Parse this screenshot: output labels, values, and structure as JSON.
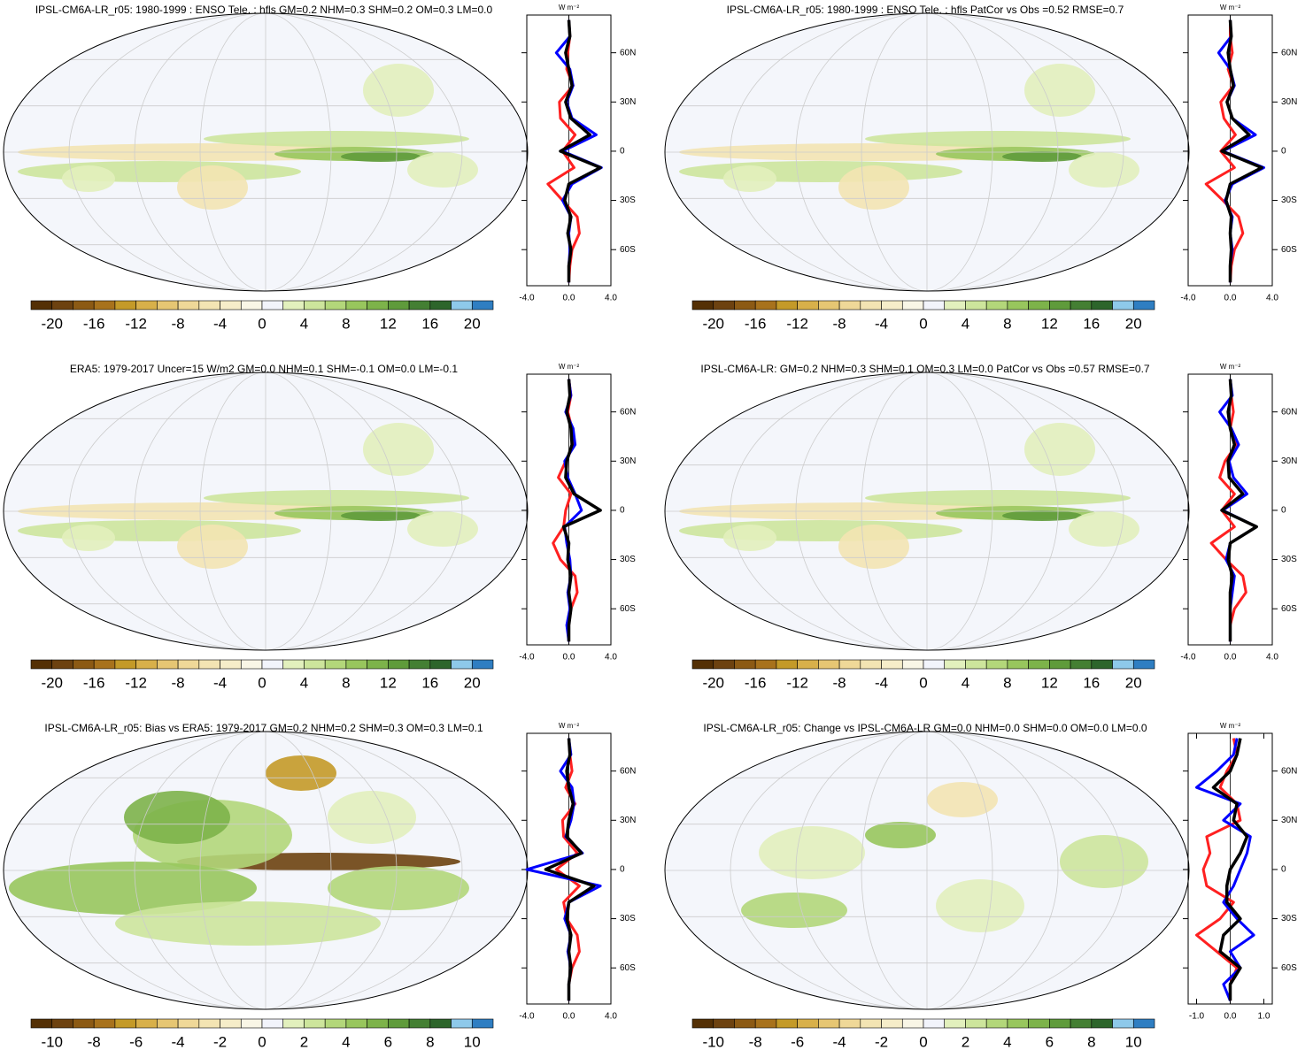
{
  "chart_data": [
    {
      "type": "map",
      "title": "IPSL-CM6A-LR_r05: 1980-1999 : ENSO Tele. : hfls GM=0.2 NHM=0.3 SHM=0.2 OM=0.3 LM=0.0",
      "colorbar": {
        "lim": [
          -22,
          22
        ],
        "colors": [
          "#543005",
          "#6d4210",
          "#8c5a14",
          "#a8721c",
          "#c49a28",
          "#d8b04a",
          "#e6c673",
          "#efd898",
          "#f3e4b3",
          "#f6edc9",
          "#f9f6e6",
          "#f2f4fb",
          "#e2f0bd",
          "#cde59c",
          "#b3d77a",
          "#98c65d",
          "#7db34a",
          "#5f9b3b",
          "#447f33",
          "#2d652b",
          "#8ec9ea",
          "#2f7ec2"
        ],
        "ticks": [
          -20,
          -16,
          -12,
          -8,
          -4,
          0,
          4,
          8,
          12,
          16,
          20
        ]
      },
      "profile": {
        "type": "line",
        "unit_label": "W m⁻²",
        "y": [
          80,
          70,
          60,
          50,
          40,
          30,
          20,
          10,
          0,
          -10,
          -20,
          -30,
          -40,
          -50,
          -60,
          -70,
          -80
        ],
        "ylim": [
          -82,
          83
        ],
        "yticks": [
          {
            "value": 60,
            "label": "60N"
          },
          {
            "value": 30,
            "label": "30N"
          },
          0,
          {
            "value": -30,
            "label": "30S"
          },
          {
            "value": -60,
            "label": "60S"
          }
        ],
        "xlim": [
          -4,
          4
        ],
        "xticks": [
          {
            "value": -4,
            "label": "-4.0"
          },
          {
            "value": 0,
            "label": "0.0"
          },
          {
            "value": 4,
            "label": "4.0"
          }
        ],
        "series": [
          {
            "color": "#ff2020",
            "values": [
              0,
              0.1,
              -0.1,
              -0.2,
              0.4,
              -0.9,
              -0.8,
              0.6,
              -0.6,
              0.5,
              -2.0,
              -0.6,
              0.8,
              1.0,
              0.3,
              0.1,
              0
            ]
          },
          {
            "color": "#0000ff",
            "values": [
              0,
              0.1,
              -1.2,
              0.1,
              0.4,
              -0.2,
              0.3,
              2.6,
              -0.6,
              3.1,
              0.3,
              -0.6,
              0.2,
              0,
              0.1,
              0,
              0
            ]
          },
          {
            "color": "#000000",
            "values": [
              0,
              0.1,
              -0.3,
              0,
              0.3,
              -0.3,
              0.2,
              2.0,
              -0.8,
              3.0,
              0,
              -0.4,
              0.2,
              -0.1,
              0.2,
              0,
              0
            ]
          }
        ]
      }
    },
    {
      "type": "map",
      "title": "IPSL-CM6A-LR_r05: 1980-1999 : ENSO Tele. : hfls PatCor vs Obs =0.52 RMSE=0.7",
      "colorbar": {
        "lim": [
          -22,
          22
        ],
        "colors": [
          "#543005",
          "#6d4210",
          "#8c5a14",
          "#a8721c",
          "#c49a28",
          "#d8b04a",
          "#e6c673",
          "#efd898",
          "#f3e4b3",
          "#f6edc9",
          "#f9f6e6",
          "#f2f4fb",
          "#e2f0bd",
          "#cde59c",
          "#b3d77a",
          "#98c65d",
          "#7db34a",
          "#5f9b3b",
          "#447f33",
          "#2d652b",
          "#8ec9ea",
          "#2f7ec2"
        ],
        "ticks": [
          -20,
          -16,
          -12,
          -8,
          -4,
          0,
          4,
          8,
          12,
          16,
          20
        ]
      },
      "profile": {
        "type": "line",
        "unit_label": "W m⁻²",
        "y": [
          80,
          70,
          60,
          50,
          40,
          30,
          20,
          10,
          0,
          -10,
          -20,
          -30,
          -40,
          -50,
          -60,
          -70,
          -80
        ],
        "ylim": [
          -82,
          83
        ],
        "yticks": [
          {
            "value": 60,
            "label": "60N"
          },
          {
            "value": 30,
            "label": "30N"
          },
          0,
          {
            "value": -30,
            "label": "30S"
          },
          {
            "value": -60,
            "label": "60S"
          }
        ],
        "xlim": [
          -4,
          4
        ],
        "xticks": [
          {
            "value": -4,
            "label": "-4.0"
          },
          {
            "value": 0,
            "label": "0.0"
          },
          {
            "value": 4,
            "label": "4.0"
          }
        ],
        "series": [
          {
            "color": "#ff2020",
            "values": [
              0,
              0,
              0.2,
              -0.2,
              0.3,
              -0.9,
              -0.6,
              0.5,
              -0.9,
              0.4,
              -2.3,
              -0.7,
              0.8,
              1.2,
              0.4,
              0.1,
              0
            ]
          },
          {
            "color": "#0000ff",
            "values": [
              0,
              0.1,
              -1.1,
              0,
              0.4,
              -0.3,
              0.2,
              2.4,
              -0.7,
              3.2,
              0.2,
              -0.5,
              0.2,
              0,
              0.2,
              0,
              0
            ]
          },
          {
            "color": "#000000",
            "values": [
              0,
              0.1,
              -0.2,
              0,
              0.3,
              -0.3,
              0.2,
              1.8,
              -0.8,
              3.0,
              0,
              -0.4,
              0.1,
              0,
              0.1,
              0,
              0
            ]
          }
        ]
      }
    },
    {
      "type": "map",
      "title": "ERA5: 1979-2017 Uncer=15 W/m2 GM=0.0 NHM=0.1 SHM=-0.1 OM=0.0 LM=-0.1",
      "colorbar": {
        "lim": [
          -22,
          22
        ],
        "colors": [
          "#543005",
          "#6d4210",
          "#8c5a14",
          "#a8721c",
          "#c49a28",
          "#d8b04a",
          "#e6c673",
          "#efd898",
          "#f3e4b3",
          "#f6edc9",
          "#f9f6e6",
          "#f2f4fb",
          "#e2f0bd",
          "#cde59c",
          "#b3d77a",
          "#98c65d",
          "#7db34a",
          "#5f9b3b",
          "#447f33",
          "#2d652b",
          "#8ec9ea",
          "#2f7ec2"
        ],
        "ticks": [
          -20,
          -16,
          -12,
          -8,
          -4,
          0,
          4,
          8,
          12,
          16,
          20
        ]
      },
      "profile": {
        "type": "line",
        "unit_label": "W m⁻²",
        "y": [
          80,
          70,
          60,
          50,
          40,
          30,
          20,
          10,
          0,
          -10,
          -20,
          -30,
          -40,
          -50,
          -60,
          -70,
          -80
        ],
        "ylim": [
          -82,
          83
        ],
        "yticks": [
          {
            "value": 60,
            "label": "60N"
          },
          {
            "value": 30,
            "label": "30N"
          },
          0,
          {
            "value": -30,
            "label": "30S"
          },
          {
            "value": -60,
            "label": "60S"
          }
        ],
        "xlim": [
          -4,
          4
        ],
        "xticks": [
          {
            "value": -4,
            "label": "-4.0"
          },
          {
            "value": 0,
            "label": "0.0"
          },
          {
            "value": 4,
            "label": "4.0"
          }
        ],
        "series": [
          {
            "color": "#ff2020",
            "values": [
              0,
              0.2,
              -0.1,
              0.3,
              0.5,
              -0.3,
              -1.0,
              0.2,
              -0.3,
              -0.5,
              -1.5,
              -0.8,
              0.6,
              0.8,
              0.2,
              0,
              0
            ]
          },
          {
            "color": "#0000ff",
            "values": [
              0,
              0.2,
              -0.3,
              0.4,
              0.6,
              -0.4,
              -0.1,
              0.6,
              1.2,
              -0.4,
              -0.2,
              0.1,
              0.2,
              -0.1,
              0.1,
              -0.2,
              0
            ]
          },
          {
            "color": "#000000",
            "values": [
              0,
              0.1,
              -0.2,
              0.2,
              0.3,
              -0.2,
              -0.3,
              0.5,
              3.0,
              -0.5,
              0,
              -0.1,
              0.2,
              0,
              0.2,
              0,
              0
            ]
          }
        ]
      }
    },
    {
      "type": "map",
      "title": "IPSL-CM6A-LR: GM=0.2 NHM=0.3 SHM=0.1 OM=0.3 LM=0.0 PatCor vs Obs =0.57 RMSE=0.7",
      "colorbar": {
        "lim": [
          -22,
          22
        ],
        "colors": [
          "#543005",
          "#6d4210",
          "#8c5a14",
          "#a8721c",
          "#c49a28",
          "#d8b04a",
          "#e6c673",
          "#efd898",
          "#f3e4b3",
          "#f6edc9",
          "#f9f6e6",
          "#f2f4fb",
          "#e2f0bd",
          "#cde59c",
          "#b3d77a",
          "#98c65d",
          "#7db34a",
          "#5f9b3b",
          "#447f33",
          "#2d652b",
          "#8ec9ea",
          "#2f7ec2"
        ],
        "ticks": [
          -20,
          -16,
          -12,
          -8,
          -4,
          0,
          4,
          8,
          12,
          16,
          20
        ]
      },
      "profile": {
        "type": "line",
        "unit_label": "W m⁻²",
        "y": [
          80,
          70,
          60,
          50,
          40,
          30,
          20,
          10,
          0,
          -10,
          -20,
          -30,
          -40,
          -50,
          -60,
          -70,
          -80
        ],
        "ylim": [
          -82,
          83
        ],
        "yticks": [
          {
            "value": 60,
            "label": "60N"
          },
          {
            "value": 30,
            "label": "30N"
          },
          0,
          {
            "value": -30,
            "label": "30S"
          },
          {
            "value": -60,
            "label": "60S"
          }
        ],
        "xlim": [
          -4,
          4
        ],
        "xticks": [
          {
            "value": -4,
            "label": "-4.0"
          },
          {
            "value": 0,
            "label": "0.0"
          },
          {
            "value": 4,
            "label": "4.0"
          }
        ],
        "series": [
          {
            "color": "#ff2020",
            "values": [
              0,
              0.1,
              0.3,
              0,
              0.6,
              -0.5,
              -1.0,
              0.4,
              -0.8,
              0.4,
              -1.8,
              -0.4,
              1.2,
              1.5,
              0.4,
              0,
              0
            ]
          },
          {
            "color": "#0000ff",
            "values": [
              0,
              0.2,
              -1.0,
              0.1,
              0.8,
              -0.1,
              0.3,
              1.6,
              -0.7,
              2.5,
              0,
              -0.4,
              0.4,
              0.2,
              0,
              0,
              0
            ]
          },
          {
            "color": "#000000",
            "values": [
              0,
              0.1,
              -0.2,
              0,
              0.4,
              -0.2,
              -0.1,
              1.2,
              -0.8,
              2.5,
              0,
              -0.2,
              0.2,
              0,
              0,
              0,
              0
            ]
          }
        ]
      }
    },
    {
      "type": "map",
      "title": "IPSL-CM6A-LR_r05: Bias vs ERA5: 1979-2017 GM=0.2 NHM=0.2 SHM=0.3 OM=0.3 LM=0.1",
      "colorbar": {
        "lim": [
          -11,
          11
        ],
        "colors": [
          "#543005",
          "#6d4210",
          "#8c5a14",
          "#a8721c",
          "#c49a28",
          "#d8b04a",
          "#e6c673",
          "#efd898",
          "#f3e4b3",
          "#f6edc9",
          "#f9f6e6",
          "#f2f4fb",
          "#e2f0bd",
          "#cde59c",
          "#b3d77a",
          "#98c65d",
          "#7db34a",
          "#5f9b3b",
          "#447f33",
          "#2d652b",
          "#8ec9ea",
          "#2f7ec2"
        ],
        "ticks": [
          -10,
          -8,
          -6,
          -4,
          -2,
          0,
          2,
          4,
          6,
          8,
          10
        ]
      },
      "profile": {
        "type": "line",
        "unit_label": "W m⁻²",
        "y": [
          80,
          70,
          60,
          50,
          40,
          30,
          20,
          10,
          0,
          -10,
          -20,
          -30,
          -40,
          -50,
          -60,
          -70,
          -80
        ],
        "ylim": [
          -82,
          83
        ],
        "yticks": [
          {
            "value": 60,
            "label": "60N"
          },
          {
            "value": 30,
            "label": "30N"
          },
          0,
          {
            "value": -30,
            "label": "30S"
          },
          {
            "value": -60,
            "label": "60S"
          }
        ],
        "xlim": [
          -4,
          4
        ],
        "xticks": [
          {
            "value": -4,
            "label": "-4.0"
          },
          {
            "value": 0,
            "label": "0.0"
          },
          {
            "value": 4,
            "label": "4.0"
          }
        ],
        "series": [
          {
            "color": "#ff2020",
            "values": [
              0,
              0.1,
              0.3,
              -0.3,
              0.6,
              -0.6,
              -0.5,
              0.8,
              -1.2,
              1.0,
              -0.5,
              -0.2,
              0.8,
              1.0,
              0.3,
              0,
              0
            ]
          },
          {
            "color": "#0000ff",
            "values": [
              0,
              0.2,
              -0.8,
              0.3,
              0.5,
              0.2,
              -0.3,
              1.3,
              -4.0,
              3.0,
              0,
              -0.4,
              0.2,
              -0.1,
              0.2,
              0,
              0
            ]
          },
          {
            "color": "#000000",
            "values": [
              0,
              0.1,
              -0.2,
              0,
              0.4,
              0,
              -0.2,
              1.2,
              -2.2,
              2.4,
              0,
              -0.2,
              0.2,
              0,
              0.2,
              0,
              0
            ]
          }
        ]
      }
    },
    {
      "type": "map",
      "title": "IPSL-CM6A-LR_r05: Change vs IPSL-CM6A-LR GM=0.0 NHM=0.0 SHM=0.0 OM=0.0 LM=0.0",
      "colorbar": {
        "lim": [
          -11,
          11
        ],
        "colors": [
          "#543005",
          "#6d4210",
          "#8c5a14",
          "#a8721c",
          "#c49a28",
          "#d8b04a",
          "#e6c673",
          "#efd898",
          "#f3e4b3",
          "#f6edc9",
          "#f9f6e6",
          "#f2f4fb",
          "#e2f0bd",
          "#cde59c",
          "#b3d77a",
          "#98c65d",
          "#7db34a",
          "#5f9b3b",
          "#447f33",
          "#2d652b",
          "#8ec9ea",
          "#2f7ec2"
        ],
        "ticks": [
          -10,
          -8,
          -6,
          -4,
          -2,
          0,
          2,
          4,
          6,
          8,
          10
        ]
      },
      "profile": {
        "type": "line",
        "unit_label": "W m⁻²",
        "y": [
          80,
          70,
          60,
          50,
          40,
          30,
          20,
          10,
          0,
          -10,
          -20,
          -30,
          -40,
          -50,
          -60,
          -70,
          -80
        ],
        "ylim": [
          -82,
          83
        ],
        "yticks": [
          {
            "value": 60,
            "label": "60N"
          },
          {
            "value": 30,
            "label": "30N"
          },
          0,
          {
            "value": -30,
            "label": "30S"
          },
          {
            "value": -60,
            "label": "60S"
          }
        ],
        "xlim": [
          -1.25,
          1.25
        ],
        "xticks": [
          {
            "value": -1,
            "label": "-1.0"
          },
          {
            "value": 0,
            "label": "0.0"
          },
          {
            "value": 1,
            "label": "1.0"
          }
        ],
        "series": [
          {
            "color": "#ff2020",
            "values": [
              0.1,
              0.2,
              -0.1,
              -0.3,
              0.2,
              0.3,
              -0.7,
              -0.6,
              -0.8,
              -0.7,
              0.1,
              -0.3,
              -1.0,
              -0.4,
              0.2,
              0,
              0
            ]
          },
          {
            "color": "#0000ff",
            "values": [
              0.2,
              0.1,
              -0.4,
              -1.0,
              0.3,
              -0.2,
              0.6,
              0.5,
              0.3,
              0.1,
              -0.2,
              0.2,
              0.7,
              0,
              0.3,
              -0.2,
              0
            ]
          },
          {
            "color": "#000000",
            "values": [
              0.3,
              0.2,
              0,
              -0.5,
              0.2,
              0.1,
              0.5,
              0.3,
              0,
              -0.1,
              -0.1,
              0.3,
              -0.2,
              -0.3,
              0.3,
              0,
              0
            ]
          }
        ]
      }
    }
  ]
}
